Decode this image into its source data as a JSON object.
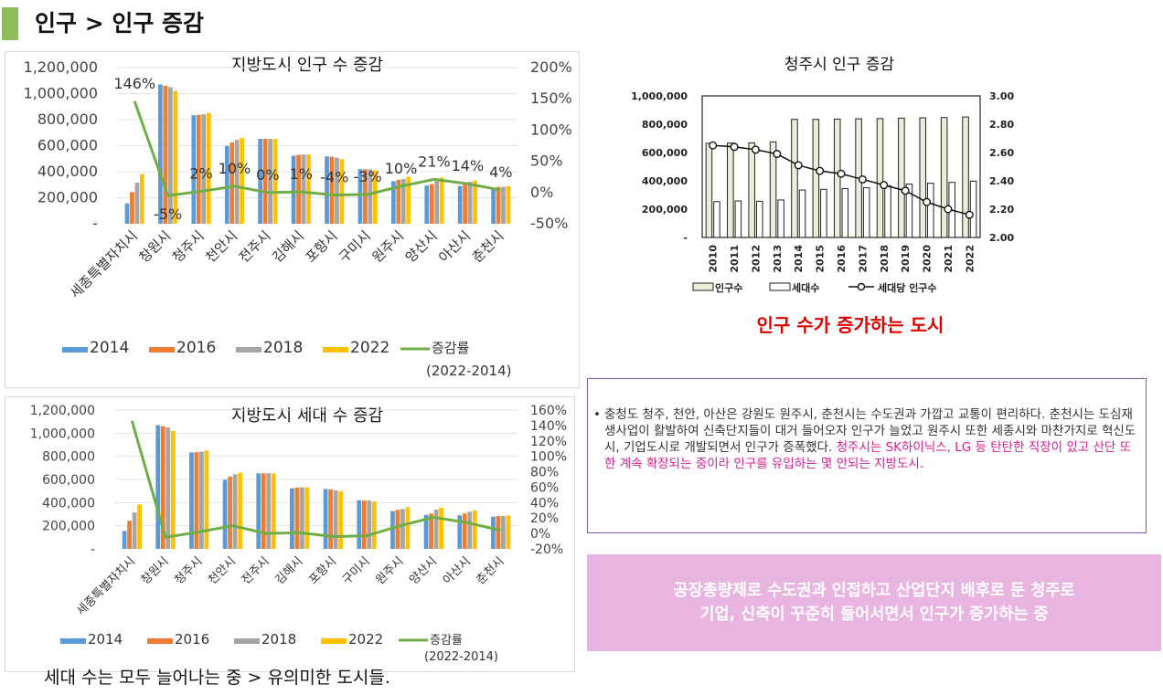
{
  "header": {
    "title": "인구 > 인구 증감"
  },
  "colors": {
    "s2014": "#5b9bd5",
    "s2016": "#ed7d31",
    "s2018": "#a5a5a5",
    "s2022": "#ffc000",
    "rate": "#70ad47",
    "accent_bar": "#8fbc5a"
  },
  "chart_data": [
    {
      "type": "bar",
      "title": "지방도시 인구 수 증감",
      "categories": [
        "세종특별자치시",
        "창원시",
        "청주시",
        "천안시",
        "전주시",
        "김해시",
        "포항시",
        "구미시",
        "원주시",
        "양산시",
        "아산시",
        "춘천시"
      ],
      "series": [
        {
          "name": "2014",
          "values": [
            156000,
            1070000,
            834000,
            598000,
            653000,
            523000,
            518000,
            420000,
            327000,
            294000,
            290000,
            278000
          ]
        },
        {
          "name": "2016",
          "values": [
            243000,
            1060000,
            836000,
            625000,
            653000,
            529000,
            515000,
            419000,
            337000,
            305000,
            305000,
            284000
          ]
        },
        {
          "name": "2018",
          "values": [
            315000,
            1050000,
            840000,
            645000,
            653000,
            532000,
            507000,
            419000,
            344000,
            340000,
            322000,
            283000
          ]
        },
        {
          "name": "2022",
          "values": [
            383000,
            1020000,
            851000,
            658000,
            651000,
            532000,
            497000,
            410000,
            361000,
            355000,
            332000,
            289000
          ]
        }
      ],
      "rate": {
        "name": "증감률 (2022-2014)",
        "values": [
          146,
          -5,
          2,
          10,
          0,
          1,
          -4,
          -3,
          10,
          21,
          14,
          4
        ]
      },
      "rate_labels": [
        "146%",
        "-5%",
        "2%",
        "10%",
        "0%",
        "1%",
        "-4%",
        "-3%",
        "10%",
        "21%",
        "14%",
        "4%"
      ],
      "y_ticks": [
        "1,200,000",
        "1,000,000",
        "800,000",
        "600,000",
        "400,000",
        "200,000",
        "-"
      ],
      "y2_ticks": [
        "200%",
        "150%",
        "100%",
        "50%",
        "0%",
        "-50%"
      ],
      "ylim": [
        0,
        1200000
      ],
      "y2lim": [
        -50,
        200
      ],
      "legend": [
        "2014",
        "2016",
        "2018",
        "2022",
        "증감률",
        "(2022-2014)"
      ]
    },
    {
      "type": "bar",
      "title": "지방도시 세대 수 증감",
      "categories": [
        "세종특별자치시",
        "창원시",
        "청주시",
        "천안시",
        "전주시",
        "김해시",
        "포항시",
        "구미시",
        "원주시",
        "양산시",
        "아산시",
        "춘천시"
      ],
      "series": [
        {
          "name": "2014",
          "values": [
            156000,
            1070000,
            834000,
            598000,
            653000,
            523000,
            518000,
            420000,
            327000,
            294000,
            290000,
            278000
          ]
        },
        {
          "name": "2016",
          "values": [
            243000,
            1060000,
            836000,
            625000,
            653000,
            529000,
            515000,
            419000,
            337000,
            305000,
            305000,
            284000
          ]
        },
        {
          "name": "2018",
          "values": [
            315000,
            1050000,
            840000,
            645000,
            653000,
            532000,
            507000,
            419000,
            344000,
            340000,
            322000,
            283000
          ]
        },
        {
          "name": "2022",
          "values": [
            383000,
            1020000,
            851000,
            658000,
            651000,
            532000,
            497000,
            410000,
            361000,
            355000,
            332000,
            289000
          ]
        }
      ],
      "rate": {
        "name": "증감률 (2022-2014)",
        "values": [
          146,
          -5,
          2,
          10,
          0,
          1,
          -4,
          -3,
          10,
          21,
          14,
          4
        ]
      },
      "y_ticks": [
        "1,200,000",
        "1,000,000",
        "800,000",
        "600,000",
        "400,000",
        "200,000",
        "-"
      ],
      "y2_ticks": [
        "160%",
        "140%",
        "120%",
        "100%",
        "80%",
        "60%",
        "40%",
        "20%",
        "0%",
        "-20%"
      ],
      "ylim": [
        0,
        1200000
      ],
      "y2lim": [
        -20,
        160
      ],
      "legend": [
        "2014",
        "2016",
        "2018",
        "2022",
        "증감률",
        "(2022-2014)"
      ]
    },
    {
      "type": "bar",
      "title": "청주시 인구 증감",
      "categories": [
        "2010",
        "2011",
        "2012",
        "2013",
        "2014",
        "2015",
        "2016",
        "2017",
        "2018",
        "2019",
        "2020",
        "2021",
        "2022"
      ],
      "series": [
        {
          "name": "인구수",
          "values": [
            665000,
            667000,
            668000,
            675000,
            834000,
            834000,
            836000,
            838000,
            840000,
            843000,
            845000,
            847000,
            851000
          ]
        },
        {
          "name": "세대수",
          "values": [
            253000,
            258000,
            256000,
            265000,
            335000,
            340000,
            345000,
            351000,
            365000,
            377000,
            383000,
            389000,
            398000
          ]
        }
      ],
      "line": {
        "name": "세대당 인구수",
        "values": [
          2.65,
          2.64,
          2.62,
          2.59,
          2.51,
          2.47,
          2.45,
          2.41,
          2.37,
          2.33,
          2.25,
          2.2,
          2.16
        ]
      },
      "y_ticks": [
        "1,000,000",
        "800,000",
        "600,000",
        "400,000",
        "200,000",
        "-"
      ],
      "y2_ticks": [
        "3.00",
        "2.80",
        "2.60",
        "2.40",
        "2.20",
        "2.00"
      ],
      "ylim": [
        0,
        1000000
      ],
      "y2lim": [
        2.0,
        3.0
      ]
    }
  ],
  "notes": {
    "red_caption": "인구 수가 증가하는 도시",
    "desc_bullet": "•",
    "desc_main": "충청도 청주, 천안, 아산은 강원도 원주시, 춘천시는 수도권과 가깝고 교통이 편리하다. 춘천시는 도심재생사업이 활발하여 신축단지들이 대거 들어오자 인구가 늘었고 원주시 또한 세종시와 마찬가지로 혁신도시, 기업도시로 개발되면서 인구가 증폭했다. ",
    "desc_highlight": "청주시는 SK하이닉스, LG 등 탄탄한 직장이 있고 산단 또한 계속 확장되는 중이라 인구를 유입하는 몇 안되는 지방도시.",
    "pink_line1": "공장총량제로 수도권과 인접하고 산업단지 배후로 둔 청주로",
    "pink_line2": "기업, 신축이 꾸준히 들어서면서 인구가 증가하는 중",
    "footnote": "세대 수는 모두 늘어나는 중 > 유의미한 도시들."
  }
}
